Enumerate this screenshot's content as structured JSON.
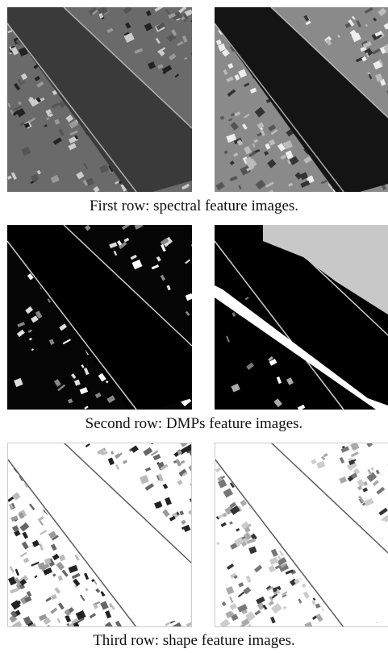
{
  "figure": {
    "rows": [
      {
        "caption": "First row: spectral feature images."
      },
      {
        "caption": "Second row: DMPs feature images."
      },
      {
        "caption": "Third row: shape feature images."
      }
    ]
  }
}
